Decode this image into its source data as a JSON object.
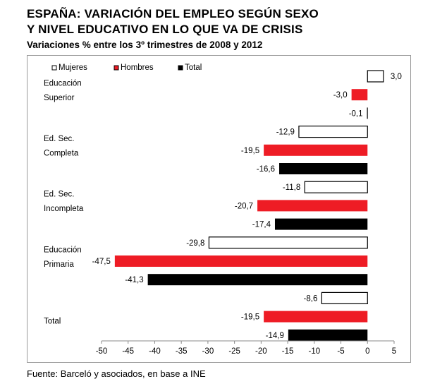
{
  "title_line1": "ESPAÑA: VARIACIÓN DEL EMPLEO SEGÚN SEXO",
  "title_line2": "Y NIVEL EDUCATIVO EN LO QUE VA DE CRISIS",
  "subtitle": "Variaciones % entre los 3º trimestres de 2008 y 2012",
  "source": "Fuente: Barceló y asociados, en base a INE",
  "chart_data": {
    "type": "bar",
    "orientation": "horizontal",
    "xlim": [
      -50,
      5
    ],
    "xticks": [
      -50,
      -45,
      -40,
      -35,
      -30,
      -25,
      -20,
      -15,
      -10,
      -5,
      0,
      5
    ],
    "legend_placement": "top-left",
    "grid": false,
    "series": [
      {
        "name": "Mujeres",
        "color": "#ffffff"
      },
      {
        "name": "Hombres",
        "color": "#ee1c25"
      },
      {
        "name": "Total",
        "color": "#000000"
      }
    ],
    "groups": [
      {
        "label_lines": [
          "Educación",
          "Superior"
        ],
        "values": [
          3.0,
          -3.0,
          -0.1
        ],
        "labels": [
          "3,0",
          "-3,0",
          "-0,1"
        ]
      },
      {
        "label_lines": [
          "Ed. Sec.",
          "Completa"
        ],
        "values": [
          -12.9,
          -19.5,
          -16.6
        ],
        "labels": [
          "-12,9",
          "-19,5",
          "-16,6"
        ]
      },
      {
        "label_lines": [
          "Ed. Sec.",
          "Incompleta"
        ],
        "values": [
          -11.8,
          -20.7,
          -17.4
        ],
        "labels": [
          "-11,8",
          "-20,7",
          "-17,4"
        ]
      },
      {
        "label_lines": [
          "Educación",
          "Primaria"
        ],
        "values": [
          -29.8,
          -47.5,
          -41.3
        ],
        "labels": [
          "-29,8",
          "-47,5",
          "-41,3"
        ]
      },
      {
        "label_lines": [
          "Total"
        ],
        "values": [
          -8.6,
          -19.5,
          -14.9
        ],
        "labels": [
          "-8,6",
          "-19,5",
          "-14,9"
        ]
      }
    ]
  }
}
